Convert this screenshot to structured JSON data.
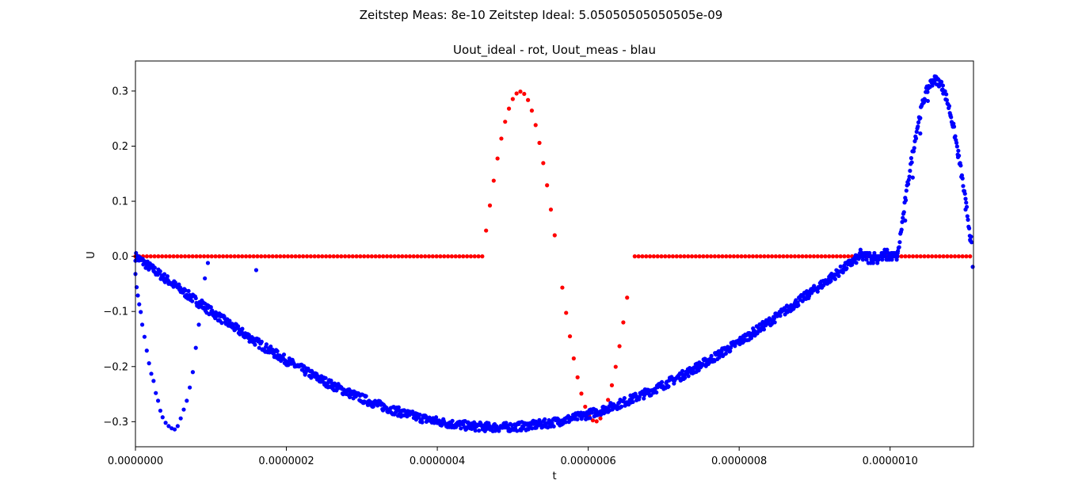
{
  "chart_data": {
    "type": "scatter",
    "suptitle": "Zeitstep Meas: 8e-10 Zeitstep Ideal: 5.05050505050505e-09",
    "title": "Uout_ideal - rot, Uout_meas - blau",
    "xlabel": "t",
    "ylabel": "U",
    "xlim": [
      0,
      1.1105e-06
    ],
    "ylim": [
      -0.3455,
      0.3545
    ],
    "x_ticks": [
      0,
      2e-07,
      4e-07,
      6e-07,
      8e-07,
      1e-06
    ],
    "x_tick_labels": [
      "0.0000000",
      "0.0000002",
      "0.0000004",
      "0.0000006",
      "0.0000008",
      "0.0000010"
    ],
    "y_ticks": [
      -0.3,
      -0.2,
      -0.1,
      0.0,
      0.1,
      0.2,
      0.3
    ],
    "y_tick_labels": [
      "−0.3",
      "−0.2",
      "−0.1",
      "0.0",
      "0.1",
      "0.2",
      "0.3"
    ],
    "grid": false,
    "colors": {
      "ideal": "#ff0000",
      "meas": "#0000ff"
    },
    "series": [
      {
        "color": "#ff0000",
        "sampling": {
          "dt": 5.05050505050505e-09,
          "n": 220
        },
        "pulse_from_to": [
          4.6e-07,
          6.6e-07
        ],
        "points": [
          [
            4.6465e-07,
            0.0468
          ],
          [
            4.697e-07,
            0.0924
          ],
          [
            4.7475e-07,
            0.1374
          ],
          [
            4.798e-07,
            0.1776
          ],
          [
            4.8485e-07,
            0.2137
          ],
          [
            4.899e-07,
            0.2443
          ],
          [
            4.9495e-07,
            0.2681
          ],
          [
            5e-07,
            0.2855
          ],
          [
            5.0505e-07,
            0.2956
          ],
          [
            5.101e-07,
            0.299
          ],
          [
            5.1515e-07,
            0.2948
          ],
          [
            5.202e-07,
            0.2837
          ],
          [
            5.2525e-07,
            0.2645
          ],
          [
            5.303e-07,
            0.2382
          ],
          [
            5.3535e-07,
            0.2059
          ],
          [
            5.404e-07,
            0.1693
          ],
          [
            5.4545e-07,
            0.129
          ],
          [
            5.5051e-07,
            0.0849
          ],
          [
            5.5556e-07,
            0.0383
          ],
          [
            5.6566e-07,
            -0.0567
          ],
          [
            5.7071e-07,
            -0.1025
          ],
          [
            5.7576e-07,
            -0.1451
          ],
          [
            5.8081e-07,
            -0.1852
          ],
          [
            5.8586e-07,
            -0.2195
          ],
          [
            5.9091e-07,
            -0.249
          ],
          [
            5.9596e-07,
            -0.2728
          ],
          [
            6.0101e-07,
            -0.2888
          ],
          [
            6.0606e-07,
            -0.2976
          ],
          [
            6.1111e-07,
            -0.2993
          ],
          [
            6.1616e-07,
            -0.294
          ],
          [
            6.2121e-07,
            -0.2813
          ],
          [
            6.2626e-07,
            -0.2604
          ],
          [
            6.3131e-07,
            -0.2339
          ],
          [
            6.3636e-07,
            -0.2004
          ],
          [
            6.4141e-07,
            -0.163
          ],
          [
            6.4646e-07,
            -0.1198
          ],
          [
            6.5152e-07,
            -0.0749
          ]
        ]
      },
      {
        "color": "#0000ff",
        "sampling": {
          "dt": 8e-10,
          "n": 1386
        },
        "noise_levels": [
          -0.012,
          -0.006,
          0.0,
          0.006,
          0.012
        ],
        "segments": [
          {
            "type": "sine",
            "t_from": 0,
            "t_to": 9.6e-07,
            "amplitude": -0.31
          },
          {
            "type": "noise",
            "t_from": 9.6e-07,
            "t_to": 1.01e-06
          },
          {
            "type": "sine",
            "t_from": 1.01e-06,
            "t_to": 1.11e-06,
            "amplitude": 0.32
          }
        ],
        "points": [
          [
            0.0,
            -0.032
          ],
          [
            1.6e-09,
            -0.056
          ],
          [
            3.2e-09,
            -0.071
          ],
          [
            5e-09,
            -0.087
          ],
          [
            7e-09,
            -0.101
          ],
          [
            9e-09,
            -0.124
          ],
          [
            1.2e-08,
            -0.146
          ],
          [
            1.5e-08,
            -0.171
          ],
          [
            1.8e-08,
            -0.194
          ],
          [
            2.1e-08,
            -0.213
          ],
          [
            2.4e-08,
            -0.226
          ],
          [
            2.7e-08,
            -0.248
          ],
          [
            3e-08,
            -0.262
          ],
          [
            3.3e-08,
            -0.28
          ],
          [
            3.6e-08,
            -0.292
          ],
          [
            4e-08,
            -0.302
          ],
          [
            4.4e-08,
            -0.308
          ],
          [
            4.8e-08,
            -0.312
          ],
          [
            5.2e-08,
            -0.314
          ],
          [
            5.6e-08,
            -0.308
          ],
          [
            6e-08,
            -0.294
          ],
          [
            6.4e-08,
            -0.278
          ],
          [
            6.8e-08,
            -0.262
          ],
          [
            7.2e-08,
            -0.238
          ],
          [
            7.6e-08,
            -0.21
          ],
          [
            8e-08,
            -0.166
          ],
          [
            8.4e-08,
            -0.124
          ],
          [
            8.8e-08,
            -0.08
          ],
          [
            9.2e-08,
            -0.04
          ],
          [
            9.6e-08,
            -0.012
          ],
          [
            1.6e-07,
            -0.025
          ],
          [
            1.01e-06,
            0.006
          ],
          [
            1.02e-06,
            0.065
          ],
          [
            1.03e-06,
            0.143
          ],
          [
            1.04e-06,
            0.223
          ],
          [
            1.05e-06,
            0.282
          ],
          [
            1.06e-06,
            0.32
          ],
          [
            1.07e-06,
            0.31
          ],
          [
            1.08e-06,
            0.255
          ],
          [
            1.09e-06,
            0.18
          ],
          [
            1.1e-06,
            0.085
          ],
          [
            1.106e-06,
            0.03
          ],
          [
            1.1095e-06,
            -0.019
          ]
        ]
      }
    ]
  }
}
